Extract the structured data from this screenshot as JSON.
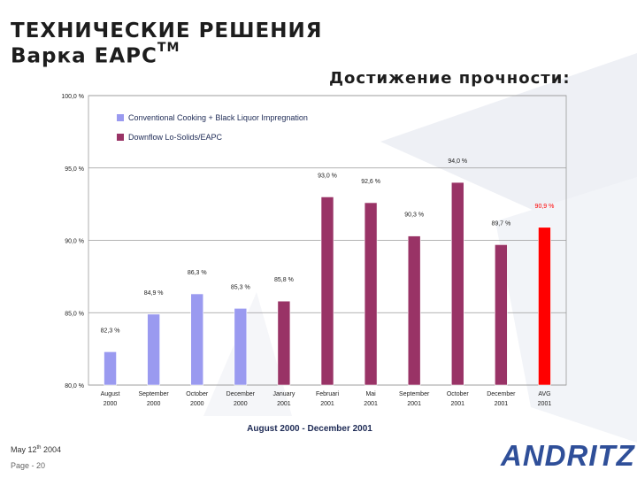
{
  "slide": {
    "title_line1": "ТЕХНИЧЕСКИЕ РЕШЕНИЯ",
    "title_line2": "Варка EAPC",
    "title_tm": "TM",
    "subtitle": "Достижение прочности:",
    "footer_date_prefix": "May 12",
    "footer_date_sup": "th",
    "footer_date_suffix": " 2004",
    "footer_page": "Page - 20",
    "logo_text": "ANDRITZ"
  },
  "chart_data": {
    "type": "bar",
    "xlabel": "August 2000 - December 2001",
    "ylim": [
      80,
      100
    ],
    "yticks": [
      80,
      85,
      90,
      95,
      100
    ],
    "ytick_labels": [
      "80,0 %",
      "85,0 %",
      "90,0 %",
      "95,0 %",
      "100,0 %"
    ],
    "grid": true,
    "legend_position": "top-left",
    "categories": [
      [
        "August",
        "2000"
      ],
      [
        "September",
        "2000"
      ],
      [
        "October",
        "2000"
      ],
      [
        "December",
        "2000"
      ],
      [
        "January",
        "2001"
      ],
      [
        "Februari",
        "2001"
      ],
      [
        "Mai",
        "2001"
      ],
      [
        "September",
        "2001"
      ],
      [
        "October",
        "2001"
      ],
      [
        "December",
        "2001"
      ],
      [
        "AVG",
        "2001"
      ]
    ],
    "series": [
      {
        "name": "Conventional Cooking + Black Liquor Impregnation",
        "color": "#9a9af0"
      },
      {
        "name": "Downflow Lo-Solids/EAPC",
        "color": "#993366"
      }
    ],
    "bars": [
      {
        "value": 82.3,
        "label": "82,3 %",
        "series": 0
      },
      {
        "value": 84.9,
        "label": "84,9 %",
        "series": 0
      },
      {
        "value": 86.3,
        "label": "86,3 %",
        "series": 0
      },
      {
        "value": 85.3,
        "label": "85,3 %",
        "series": 0
      },
      {
        "value": 85.8,
        "label": "85,8 %",
        "series": 1
      },
      {
        "value": 93.0,
        "label": "93,0 %",
        "series": 1
      },
      {
        "value": 92.6,
        "label": "92,6 %",
        "series": 1
      },
      {
        "value": 90.3,
        "label": "90,3 %",
        "series": 1
      },
      {
        "value": 94.0,
        "label": "94,0 %",
        "series": 1
      },
      {
        "value": 89.7,
        "label": "89,7 %",
        "series": 1
      },
      {
        "value": 90.9,
        "label": "90,9 %",
        "series": 1,
        "color": "#ff0000"
      }
    ]
  }
}
